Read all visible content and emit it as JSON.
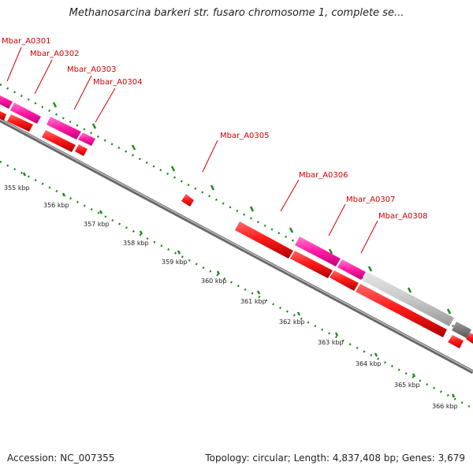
{
  "title": "Methanosarcina barkeri str. fusaro chromosome 1, complete se...",
  "footer": {
    "accession": "Accession: NC_007355",
    "summary": "Topology: circular; Length: 4,837,408 bp; Genes: 3,679"
  },
  "gene_labels": [
    "Mbar_A0301",
    "Mbar_A0302",
    "Mbar_A0303",
    "Mbar_A0304",
    "Mbar_A0305",
    "Mbar_A0306",
    "Mbar_A0307",
    "Mbar_A0308"
  ],
  "tick_labels": [
    "355 kbp",
    "356 kbp",
    "357 kbp",
    "358 kbp",
    "359 kbp",
    "360 kbp",
    "361 kbp",
    "362 kbp",
    "363 kbp",
    "364 kbp",
    "365 kbp",
    "366 kbp"
  ],
  "colors": {
    "label_red": "#d40000",
    "gene_red": "#ff0000",
    "gene_magenta": "#ff1493",
    "gene_gray": "#c8c8c8",
    "backbone": "#888888",
    "tick_green": "#1a8a1a"
  }
}
